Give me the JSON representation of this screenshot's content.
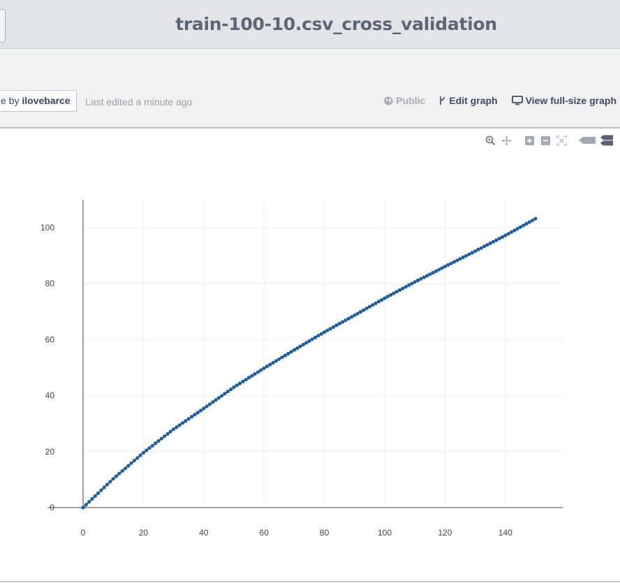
{
  "header": {
    "title": "train-100-10.csv_cross_validation"
  },
  "meta": {
    "attribution_prefix": "e by",
    "owner": "ilovebarce",
    "last_edited": "Last edited a minute ago",
    "public_label": "Public",
    "edit_label": "Edit graph",
    "view_label": "View full-size graph"
  },
  "modebar": {
    "icons": [
      "zoom-icon",
      "pan-icon",
      "zoom-in-icon",
      "zoom-out-icon",
      "autoscale-icon",
      "hover-closest-icon",
      "hover-compare-icon"
    ]
  },
  "colors": {
    "header_bg": "#e3e4e7",
    "metabar_bg": "#f1f1f2",
    "title": "#5d6677",
    "series": "#1f5fa0",
    "grid": "#eeeeee"
  },
  "chart_data": {
    "type": "scatter",
    "mode": "lines+markers",
    "title": "",
    "xlabel": "",
    "ylabel": "",
    "xlim": [
      0,
      160
    ],
    "ylim": [
      -2,
      110
    ],
    "xticks": [
      0,
      20,
      40,
      60,
      80,
      100,
      120,
      140
    ],
    "yticks": [
      0,
      20,
      40,
      60,
      80,
      100
    ],
    "x_tick_labels": [
      "0",
      "20",
      "40",
      "60",
      "80",
      "100",
      "120",
      "140"
    ],
    "y_tick_labels": [
      "0",
      "20",
      "40",
      "60",
      "80",
      "100"
    ],
    "grid": true,
    "series": [
      {
        "x": [
          0,
          10,
          20,
          30,
          40,
          50,
          60,
          70,
          80,
          90,
          100,
          110,
          120,
          130,
          140,
          150
        ],
        "y": [
          0,
          10.3,
          19.6,
          28.0,
          35.4,
          43.0,
          49.8,
          56.3,
          62.7,
          68.7,
          74.8,
          80.6,
          86.1,
          91.6,
          97.2,
          103.2
        ]
      }
    ]
  }
}
